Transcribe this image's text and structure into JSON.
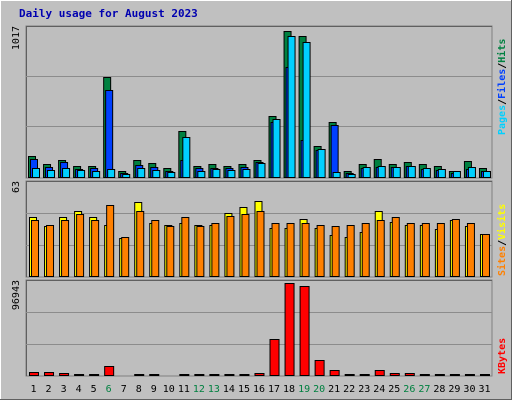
{
  "title": "Daily usage for August 2023",
  "colors": {
    "frame": "#c0c0c0",
    "plot_bg": "#bebebe",
    "grid": "#8c8c8c",
    "title_text": "#0000b0",
    "hits": "#008040",
    "files": "#0040ff",
    "pages": "#00d0ff",
    "visits": "#ffff00",
    "sites": "#ff8000",
    "kbytes": "#ff0000",
    "weekend_label": "#008040",
    "weekday_label": "#000000"
  },
  "legend_top": {
    "pages": "Pages",
    "files": "Files",
    "hits": "Hits",
    "sep1": "/",
    "sep2": "/"
  },
  "legend_mid": {
    "sites": "Sites",
    "visits": "Visits",
    "sep": "/"
  },
  "legend_bottom": {
    "kbytes": "KBytes"
  },
  "chart_data": [
    {
      "type": "bar",
      "panel": "hits-files-pages",
      "categories": [
        "1",
        "2",
        "3",
        "4",
        "5",
        "6",
        "7",
        "8",
        "9",
        "10",
        "11",
        "12",
        "13",
        "14",
        "15",
        "16",
        "17",
        "18",
        "19",
        "20",
        "21",
        "22",
        "23",
        "24",
        "25",
        "26",
        "27",
        "28",
        "29",
        "30",
        "31"
      ],
      "ylabel": "1017",
      "ylim": [
        0,
        1017
      ],
      "grid": true,
      "series": [
        {
          "name": "Hits",
          "values": [
            150,
            95,
            125,
            80,
            80,
            685,
            50,
            125,
            100,
            70,
            320,
            80,
            95,
            80,
            95,
            125,
            420,
            1000,
            960,
            220,
            380,
            50,
            95,
            130,
            95,
            110,
            95,
            80,
            50,
            115,
            65
          ]
        },
        {
          "name": "Files",
          "values": [
            130,
            75,
            110,
            60,
            65,
            600,
            35,
            90,
            75,
            50,
            125,
            65,
            70,
            65,
            75,
            110,
            380,
            750,
            260,
            190,
            360,
            35,
            70,
            75,
            75,
            80,
            60,
            55,
            35,
            60,
            45
          ]
        },
        {
          "name": "Pages",
          "values": [
            70,
            55,
            70,
            55,
            50,
            60,
            30,
            65,
            55,
            40,
            280,
            50,
            60,
            55,
            60,
            100,
            400,
            960,
            920,
            195,
            40,
            30,
            75,
            80,
            75,
            80,
            70,
            60,
            45,
            75,
            50
          ]
        }
      ]
    },
    {
      "type": "bar",
      "panel": "visits-sites",
      "categories": [
        "1",
        "2",
        "3",
        "4",
        "5",
        "6",
        "7",
        "8",
        "9",
        "10",
        "11",
        "12",
        "13",
        "14",
        "15",
        "16",
        "17",
        "18",
        "19",
        "20",
        "21",
        "22",
        "23",
        "24",
        "25",
        "26",
        "27",
        "28",
        "29",
        "30",
        "31"
      ],
      "ylabel": "63",
      "ylim": [
        0,
        63
      ],
      "grid": true,
      "series": [
        {
          "name": "Visits",
          "values": [
            40,
            34,
            40,
            44,
            40,
            35,
            26,
            50,
            36,
            35,
            36,
            35,
            35,
            43,
            47,
            51,
            33,
            33,
            39,
            33,
            28,
            27,
            30,
            44,
            37,
            35,
            35,
            32,
            38,
            34,
            29
          ]
        },
        {
          "name": "Sites",
          "values": [
            38,
            35,
            38,
            42,
            38,
            48,
            27,
            44,
            38,
            34,
            40,
            34,
            36,
            41,
            42,
            44,
            36,
            36,
            36,
            35,
            34,
            35,
            36,
            38,
            40,
            36,
            36,
            36,
            39,
            36,
            29
          ]
        }
      ]
    },
    {
      "type": "bar",
      "panel": "kbytes",
      "categories": [
        "1",
        "2",
        "3",
        "4",
        "5",
        "6",
        "7",
        "8",
        "9",
        "10",
        "11",
        "12",
        "13",
        "14",
        "15",
        "16",
        "17",
        "18",
        "19",
        "20",
        "21",
        "22",
        "23",
        "24",
        "25",
        "26",
        "27",
        "28",
        "29",
        "30",
        "31"
      ],
      "ylabel": "96943",
      "ylim": [
        0,
        96943
      ],
      "grid": true,
      "series": [
        {
          "name": "KBytes",
          "values": [
            4500,
            4000,
            3500,
            2500,
            2000,
            10500,
            1500,
            2500,
            2000,
            1500,
            2500,
            2000,
            2500,
            2000,
            2500,
            3000,
            38000,
            96000,
            93000,
            17000,
            6500,
            2500,
            2500,
            6000,
            3000,
            3000,
            2500,
            2500,
            2000,
            2500,
            2000
          ]
        }
      ]
    }
  ],
  "weekend_days": [
    6,
    12,
    13,
    19,
    20,
    26,
    27
  ]
}
